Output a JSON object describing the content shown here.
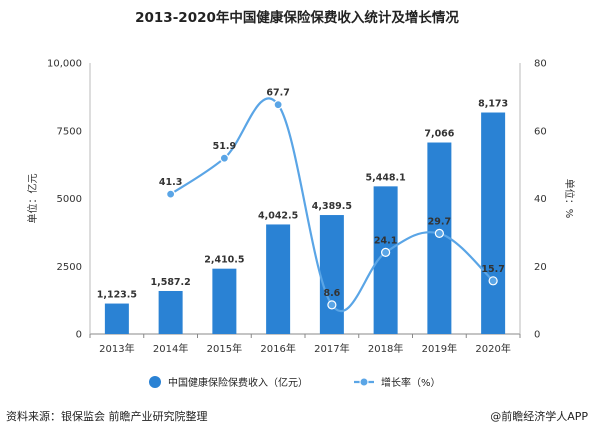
{
  "footer": {
    "source": "资料来源：银保监会 前瞻产业研究院整理",
    "brand": "@前瞻经济学人APP"
  },
  "chart_data": {
    "type": "bar",
    "title": "2013-2020年中国健康保险保费收入统计及增长情况",
    "categories": [
      "2013年",
      "2014年",
      "2015年",
      "2016年",
      "2017年",
      "2018年",
      "2019年",
      "2020年"
    ],
    "series": [
      {
        "name": "中国健康保险保费收入（亿元）",
        "type": "bar",
        "axis": "left",
        "color": "#2a82d4",
        "values": [
          1123.5,
          1587.2,
          2410.5,
          4042.5,
          4389.5,
          5448.1,
          7066,
          8173
        ],
        "labels": [
          "1,123.5",
          "1,587.2",
          "2,410.5",
          "4,042.5",
          "4,389.5",
          "5,448.1",
          "7,066",
          "8,173"
        ]
      },
      {
        "name": "增长率（%）",
        "type": "line",
        "axis": "right",
        "color": "#5aa5e6",
        "values": [
          null,
          41.3,
          51.9,
          67.7,
          8.6,
          24.1,
          29.7,
          15.7
        ],
        "labels": [
          "",
          "41.3",
          "51.9",
          "67.7",
          "8.6",
          "24.1",
          "29.7",
          "15.7"
        ]
      }
    ],
    "y_left": {
      "label": "单位：亿元",
      "ylim": [
        0,
        10000
      ],
      "ticks": [
        0,
        2500,
        5000,
        7500,
        10000
      ],
      "tick_labels": [
        "0",
        "2500",
        "5000",
        "7500",
        "10,000"
      ]
    },
    "y_right": {
      "label": "单位：%",
      "ylim": [
        0,
        80
      ],
      "ticks": [
        0,
        20,
        40,
        60,
        80
      ],
      "tick_labels": [
        "0",
        "20",
        "40",
        "60",
        "80"
      ]
    },
    "grid": false,
    "legend_position": "bottom"
  }
}
